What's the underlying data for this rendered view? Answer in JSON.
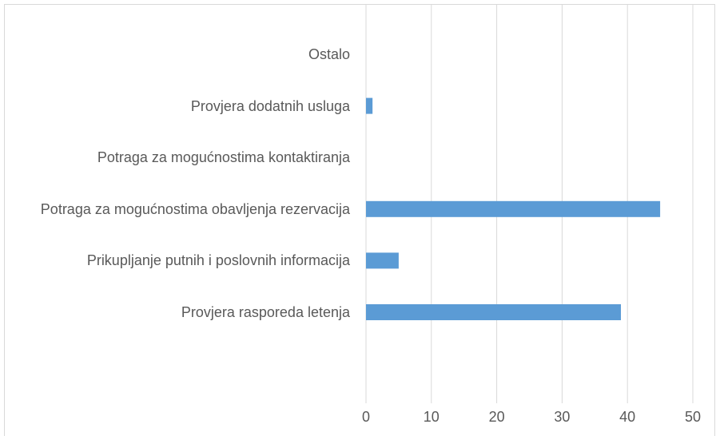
{
  "chart_data": {
    "type": "bar",
    "orientation": "horizontal",
    "categories": [
      "Ostalo",
      "Provjera dodatnih usluga",
      "Potraga za mogućnostima kontaktiranja",
      "Potraga za mogućnostima obavljenja rezervacija",
      "Prikupljanje putnih i poslovnih informacija",
      "Provjera rasporeda letenja"
    ],
    "values": [
      0,
      1,
      0,
      45,
      5,
      39
    ],
    "color": "#5b9bd5",
    "xlim": [
      0,
      50
    ],
    "xticks": [
      0,
      10,
      20,
      30,
      40,
      50
    ],
    "grid": true
  }
}
